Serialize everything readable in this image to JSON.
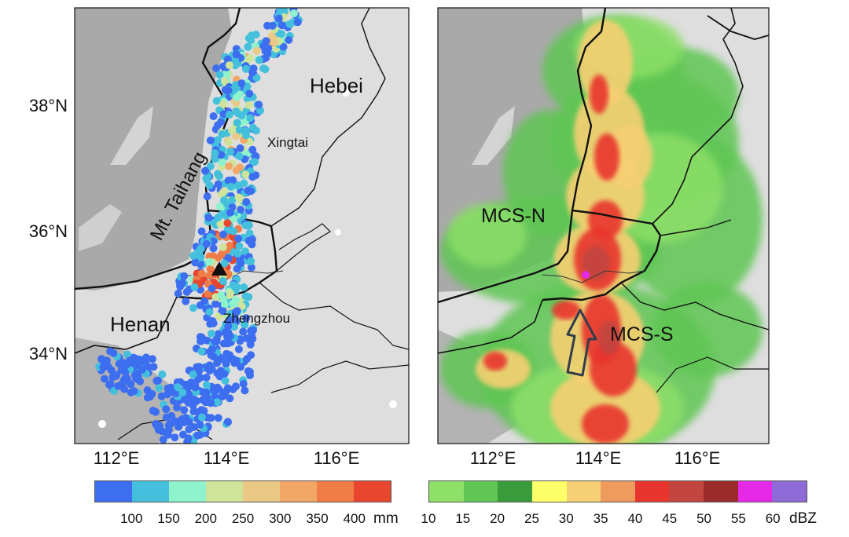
{
  "left_panel": {
    "lat_labels": [
      "38°N",
      "36°N",
      "34°N"
    ],
    "lon_labels": [
      "112°E",
      "114°E",
      "116°E"
    ],
    "places": {
      "hebei": "Hebei",
      "henan": "Henan",
      "xingtai": "Xingtai",
      "zhengzhou": "Zhengzhou",
      "mountain": "Mt. Taihang"
    }
  },
  "right_panel": {
    "lon_labels": [
      "112°E",
      "114°E",
      "116°E"
    ],
    "labels": {
      "mcs_n": "MCS-N",
      "mcs_s": "MCS-S"
    }
  },
  "precip_colorbar": {
    "colors": [
      "#3d6ef0",
      "#44c0dc",
      "#8ef3cc",
      "#cfe49a",
      "#e9c985",
      "#f3a766",
      "#f07c48",
      "#e9462f"
    ],
    "ticks": [
      "100",
      "150",
      "200",
      "250",
      "300",
      "350",
      "400"
    ],
    "unit": "mm"
  },
  "radar_colorbar": {
    "colors": [
      "#8ee068",
      "#5fc653",
      "#3a9b3c",
      "#ffff6a",
      "#f6cf72",
      "#ef9b5e",
      "#e8362e",
      "#c24540",
      "#9b2b2b",
      "#e42ae6",
      "#8e6ad6"
    ],
    "ticks": [
      "10",
      "15",
      "20",
      "25",
      "30",
      "35",
      "40",
      "45",
      "50",
      "55",
      "60"
    ],
    "unit": "dBZ"
  }
}
